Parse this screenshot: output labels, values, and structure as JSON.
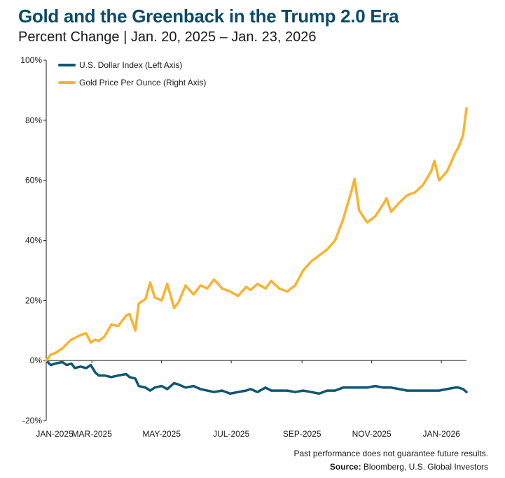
{
  "header": {
    "title": "Gold and the Greenback in the Trump 2.0 Era",
    "subtitle": "Percent Change | Jan. 20, 2025 – Jan. 23, 2026"
  },
  "footer": {
    "disclaimer": "Past performance does not guarantee future results.",
    "source_label": "Source:",
    "source_text": "Bloomberg, U.S. Global Investors"
  },
  "colors": {
    "dollar": "#0f5674",
    "gold": "#f8b331",
    "axis": "#1a1a1a"
  },
  "chart_data": {
    "type": "line",
    "title": "Gold and the Greenback in the Trump 2.0 Era",
    "subtitle": "Percent Change | Jan. 20, 2025 – Jan. 23, 2026",
    "xlim": [
      "2025-01-20",
      "2026-01-23"
    ],
    "ylim": [
      -20,
      100
    ],
    "y_ticks": [
      "-20%",
      "0%",
      "20%",
      "40%",
      "60%",
      "80%",
      "100%"
    ],
    "y_tick_values": [
      -20,
      0,
      20,
      40,
      60,
      80,
      100
    ],
    "x_ticks": [
      "JAN-2025",
      "MAR-2025",
      "MAY-2025",
      "JUL-2025",
      "SEP-2025",
      "NOV-2025",
      "JAN-2026"
    ],
    "x_tick_dates": [
      "2025-01-01",
      "2025-03-01",
      "2025-05-01",
      "2025-07-01",
      "2025-09-01",
      "2025-11-01",
      "2026-01-01"
    ],
    "legend_position": "top-left",
    "grid": false,
    "series": [
      {
        "name": "U.S. Dollar Index (Left Axis)",
        "color": "#0f5674",
        "points": [
          [
            "2025-01-20",
            0
          ],
          [
            "2025-01-24",
            -1.5
          ],
          [
            "2025-01-28",
            -1.0
          ],
          [
            "2025-02-03",
            -0.5
          ],
          [
            "2025-02-07",
            -1.5
          ],
          [
            "2025-02-11",
            -1.0
          ],
          [
            "2025-02-14",
            -2.5
          ],
          [
            "2025-02-19",
            -2.0
          ],
          [
            "2025-02-24",
            -2.5
          ],
          [
            "2025-02-28",
            -1.5
          ],
          [
            "2025-03-04",
            -4.0
          ],
          [
            "2025-03-07",
            -5.0
          ],
          [
            "2025-03-12",
            -5.0
          ],
          [
            "2025-03-18",
            -5.5
          ],
          [
            "2025-03-24",
            -5.0
          ],
          [
            "2025-03-31",
            -4.5
          ],
          [
            "2025-04-03",
            -5.5
          ],
          [
            "2025-04-08",
            -6.0
          ],
          [
            "2025-04-11",
            -8.5
          ],
          [
            "2025-04-17",
            -9.0
          ],
          [
            "2025-04-21",
            -10.0
          ],
          [
            "2025-04-25",
            -9.0
          ],
          [
            "2025-05-01",
            -8.5
          ],
          [
            "2025-05-06",
            -9.5
          ],
          [
            "2025-05-12",
            -7.5
          ],
          [
            "2025-05-16",
            -8.0
          ],
          [
            "2025-05-22",
            -9.0
          ],
          [
            "2025-05-29",
            -8.5
          ],
          [
            "2025-06-04",
            -9.5
          ],
          [
            "2025-06-10",
            -10.0
          ],
          [
            "2025-06-16",
            -10.5
          ],
          [
            "2025-06-23",
            -10.0
          ],
          [
            "2025-06-30",
            -11.0
          ],
          [
            "2025-07-07",
            -10.5
          ],
          [
            "2025-07-14",
            -10.0
          ],
          [
            "2025-07-18",
            -9.5
          ],
          [
            "2025-07-24",
            -10.5
          ],
          [
            "2025-07-31",
            -9.0
          ],
          [
            "2025-08-05",
            -10.0
          ],
          [
            "2025-08-12",
            -10.0
          ],
          [
            "2025-08-19",
            -10.0
          ],
          [
            "2025-08-26",
            -10.5
          ],
          [
            "2025-09-02",
            -10.0
          ],
          [
            "2025-09-09",
            -10.5
          ],
          [
            "2025-09-16",
            -11.0
          ],
          [
            "2025-09-23",
            -10.0
          ],
          [
            "2025-09-30",
            -10.0
          ],
          [
            "2025-10-07",
            -9.0
          ],
          [
            "2025-10-14",
            -9.0
          ],
          [
            "2025-10-21",
            -9.0
          ],
          [
            "2025-10-28",
            -9.0
          ],
          [
            "2025-11-04",
            -8.5
          ],
          [
            "2025-11-11",
            -9.0
          ],
          [
            "2025-11-18",
            -9.0
          ],
          [
            "2025-11-25",
            -9.5
          ],
          [
            "2025-12-02",
            -10.0
          ],
          [
            "2025-12-09",
            -10.0
          ],
          [
            "2025-12-16",
            -10.0
          ],
          [
            "2025-12-23",
            -10.0
          ],
          [
            "2025-12-30",
            -10.0
          ],
          [
            "2026-01-06",
            -9.5
          ],
          [
            "2026-01-13",
            -9.0
          ],
          [
            "2026-01-16",
            -9.0
          ],
          [
            "2026-01-20",
            -9.5
          ],
          [
            "2026-01-23",
            -10.5
          ]
        ]
      },
      {
        "name": "Gold Price Per Ounce (Right Axis)",
        "color": "#f8b331",
        "points": [
          [
            "2025-01-20",
            0
          ],
          [
            "2025-01-24",
            2.0
          ],
          [
            "2025-01-28",
            2.5
          ],
          [
            "2025-02-03",
            4.0
          ],
          [
            "2025-02-07",
            5.5
          ],
          [
            "2025-02-11",
            7.0
          ],
          [
            "2025-02-14",
            7.5
          ],
          [
            "2025-02-19",
            8.5
          ],
          [
            "2025-02-24",
            9.0
          ],
          [
            "2025-02-28",
            6.0
          ],
          [
            "2025-03-04",
            7.0
          ],
          [
            "2025-03-07",
            6.5
          ],
          [
            "2025-03-12",
            8.0
          ],
          [
            "2025-03-18",
            12.0
          ],
          [
            "2025-03-24",
            11.5
          ],
          [
            "2025-03-31",
            15.0
          ],
          [
            "2025-04-03",
            15.5
          ],
          [
            "2025-04-08",
            10.0
          ],
          [
            "2025-04-11",
            19.0
          ],
          [
            "2025-04-17",
            20.5
          ],
          [
            "2025-04-21",
            26.0
          ],
          [
            "2025-04-25",
            21.0
          ],
          [
            "2025-05-01",
            20.0
          ],
          [
            "2025-05-06",
            25.5
          ],
          [
            "2025-05-12",
            17.5
          ],
          [
            "2025-05-16",
            19.5
          ],
          [
            "2025-05-22",
            25.0
          ],
          [
            "2025-05-29",
            22.0
          ],
          [
            "2025-06-04",
            25.0
          ],
          [
            "2025-06-10",
            24.0
          ],
          [
            "2025-06-16",
            27.0
          ],
          [
            "2025-06-23",
            24.0
          ],
          [
            "2025-06-30",
            23.0
          ],
          [
            "2025-07-07",
            21.5
          ],
          [
            "2025-07-14",
            24.5
          ],
          [
            "2025-07-18",
            23.5
          ],
          [
            "2025-07-24",
            25.5
          ],
          [
            "2025-07-31",
            24.0
          ],
          [
            "2025-08-05",
            26.5
          ],
          [
            "2025-08-12",
            24.0
          ],
          [
            "2025-08-19",
            23.0
          ],
          [
            "2025-08-26",
            25.0
          ],
          [
            "2025-09-02",
            30.0
          ],
          [
            "2025-09-09",
            33.0
          ],
          [
            "2025-09-16",
            35.0
          ],
          [
            "2025-09-23",
            37.0
          ],
          [
            "2025-09-30",
            40.0
          ],
          [
            "2025-10-07",
            47.0
          ],
          [
            "2025-10-14",
            56.0
          ],
          [
            "2025-10-17",
            60.5
          ],
          [
            "2025-10-21",
            50.0
          ],
          [
            "2025-10-28",
            46.0
          ],
          [
            "2025-11-04",
            48.0
          ],
          [
            "2025-11-11",
            52.0
          ],
          [
            "2025-11-14",
            54.0
          ],
          [
            "2025-11-18",
            49.5
          ],
          [
            "2025-11-25",
            52.5
          ],
          [
            "2025-12-02",
            55.0
          ],
          [
            "2025-12-09",
            56.0
          ],
          [
            "2025-12-16",
            58.5
          ],
          [
            "2025-12-23",
            63.0
          ],
          [
            "2025-12-26",
            66.5
          ],
          [
            "2025-12-30",
            60.0
          ],
          [
            "2026-01-06",
            63.0
          ],
          [
            "2026-01-13",
            69.0
          ],
          [
            "2026-01-16",
            71.0
          ],
          [
            "2026-01-20",
            75.0
          ],
          [
            "2026-01-23",
            84.0
          ]
        ]
      }
    ]
  }
}
